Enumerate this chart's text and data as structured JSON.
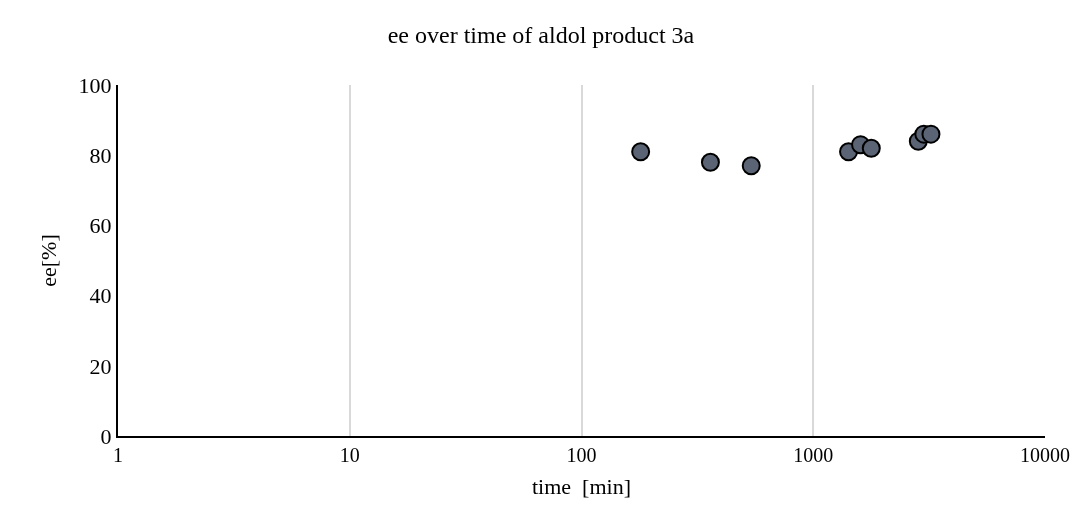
{
  "chart_data": {
    "type": "scatter",
    "title": "ee over time of aldol product 3a",
    "xlabel": "time  [min]",
    "ylabel": "ee[%]",
    "x": [
      180,
      360,
      540,
      1420,
      1600,
      1780,
      2840,
      3000,
      3220
    ],
    "values": [
      81,
      78,
      77,
      81,
      83,
      82,
      84,
      86,
      86
    ],
    "color": "#5a6474",
    "marker": "circle",
    "log": "x",
    "grid": "x",
    "xlim": [
      1,
      10000
    ],
    "xticks": [
      1,
      10,
      100,
      1000,
      10000
    ],
    "ylim": [
      0,
      100
    ],
    "yticks": [
      0,
      20,
      40,
      60,
      80,
      100
    ]
  }
}
